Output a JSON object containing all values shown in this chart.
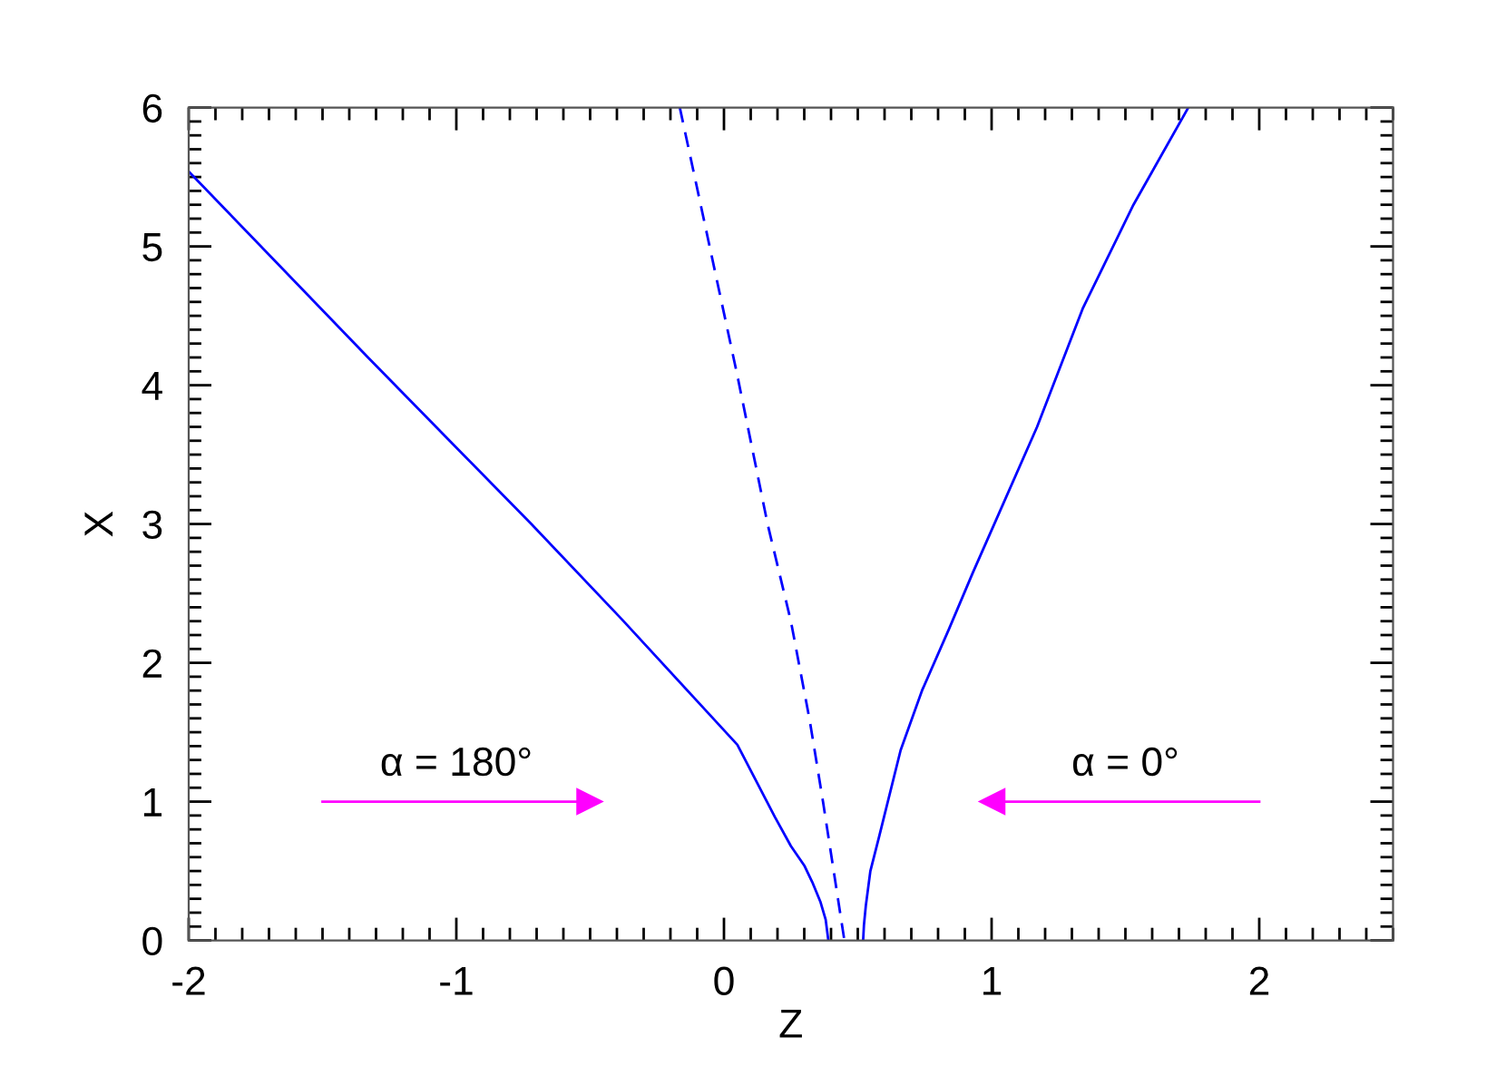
{
  "chart_data": {
    "type": "line",
    "xlabel": "Z",
    "ylabel": "X",
    "xlim": [
      -2,
      2.5
    ],
    "ylim": [
      0,
      6
    ],
    "xticks": [
      -2,
      -1,
      0,
      1,
      2
    ],
    "yticks": [
      0,
      1,
      2,
      3,
      4,
      5,
      6
    ],
    "grid": false,
    "series": [
      {
        "color": "#0000ff",
        "line_style": "solid",
        "x": [
          -2.0,
          -1.33,
          -0.72,
          -0.38,
          0.05,
          0.19,
          0.25,
          0.3,
          0.33,
          0.36,
          0.38,
          0.39
        ],
        "values": [
          5.54,
          4.2,
          3.0,
          2.31,
          1.41,
          0.89,
          0.68,
          0.54,
          0.42,
          0.28,
          0.15,
          0.0
        ]
      },
      {
        "color": "#0000ff",
        "line_style": "dashed",
        "x": [
          -0.165,
          0.05,
          0.163,
          0.25,
          0.32,
          0.37,
          0.41,
          0.45
        ],
        "values": [
          6.0,
          4.07,
          3.0,
          2.3,
          1.59,
          1.0,
          0.5,
          0.0
        ]
      },
      {
        "color": "#0000ff",
        "line_style": "solid",
        "x": [
          0.52,
          0.523,
          0.53,
          0.547,
          0.58,
          0.66,
          0.74,
          0.84,
          0.93,
          1.01,
          1.17,
          1.34,
          1.53,
          1.735
        ],
        "values": [
          0.0,
          0.11,
          0.25,
          0.5,
          0.75,
          1.37,
          1.8,
          2.24,
          2.65,
          3.0,
          3.7,
          4.55,
          5.3,
          6.0
        ]
      },
      {
        "color": "#ff00ff",
        "line_style": "solid",
        "marker": "triangle",
        "x": [
          -1.5,
          -0.5
        ],
        "values": [
          1,
          1
        ]
      },
      {
        "color": "#ff00ff",
        "line_style": "solid",
        "marker": "triangle",
        "x": [
          2.0,
          1.0
        ],
        "values": [
          1,
          1
        ]
      }
    ],
    "annotations": [
      "α = 180°",
      "α = 0°"
    ]
  }
}
